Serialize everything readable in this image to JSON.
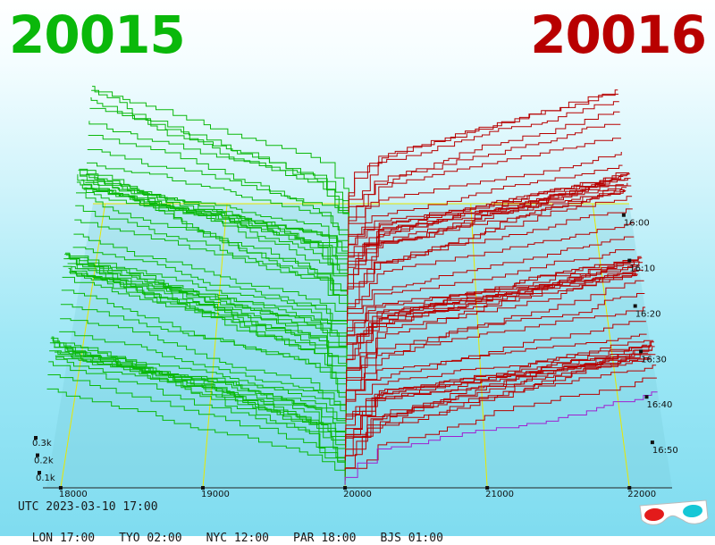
{
  "bid_price": "20015",
  "ask_price": "20016",
  "footer": {
    "utc": "UTC 2023-03-10 17:00",
    "zones": [
      "LON 17:00",
      "TYO 02:00",
      "NYC 12:00",
      "PAR 18:00",
      "BJS 01:00"
    ]
  },
  "colors": {
    "bid": "#0ab80a",
    "ask": "#b80000",
    "grid": "#e8e800",
    "latest": "#a020d0"
  },
  "icons": [
    "3d-glasses-icon"
  ],
  "chart_data": {
    "type": "line",
    "title": "",
    "x": {
      "ticks": [
        18000,
        19000,
        20000,
        21000,
        22000
      ],
      "labels": [
        "18000",
        "19000",
        "20000",
        "21000",
        "22000"
      ],
      "range": [
        17900,
        22300
      ]
    },
    "y": {
      "ticks": [
        100,
        200,
        300
      ],
      "labels": [
        "0.1k",
        "0.2k",
        "0.3k"
      ]
    },
    "time_axis": {
      "labels": [
        "16:00",
        "16:10",
        "16:20",
        "16:30",
        "16:40",
        "16:50"
      ]
    },
    "mid_price": 20015.5,
    "series": [
      {
        "side": "bid",
        "price_range": [
          17900,
          20000
        ],
        "approx_depth_at_edge": 330
      },
      {
        "side": "ask",
        "price_range": [
          20000,
          22200
        ],
        "approx_depth_at_edge": 320
      }
    ],
    "snapshot_count": 60,
    "grid": true
  }
}
